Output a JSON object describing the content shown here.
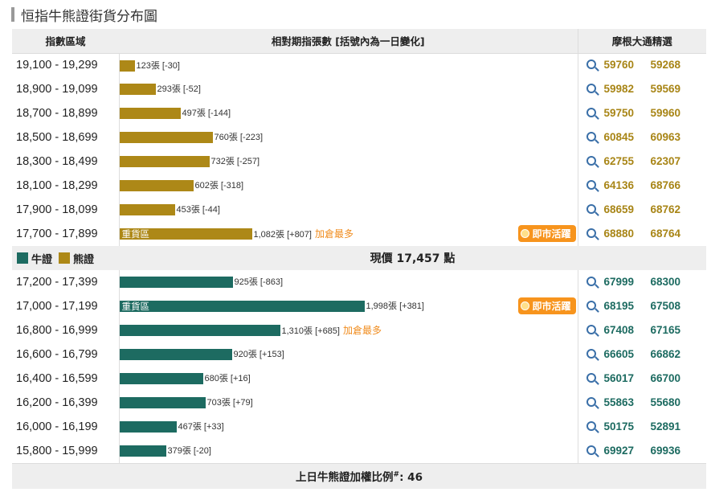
{
  "title": "恒指牛熊證街貨分布圖",
  "headers": {
    "range": "指數區域",
    "count": "相對期指張數 [括號內為一日變化]",
    "picks": "摩根大通精選"
  },
  "bear_rows": [
    {
      "range": "19,100 - 19,299",
      "label": "123張 [-30]",
      "value": 123,
      "codes": [
        "59760",
        "59268"
      ]
    },
    {
      "range": "18,900 - 19,099",
      "label": "293張 [-52]",
      "value": 293,
      "codes": [
        "59982",
        "59569"
      ]
    },
    {
      "range": "18,700 - 18,899",
      "label": "497張 [-144]",
      "value": 497,
      "codes": [
        "59750",
        "59960"
      ]
    },
    {
      "range": "18,500 - 18,699",
      "label": "760張 [-223]",
      "value": 760,
      "codes": [
        "60845",
        "60963"
      ]
    },
    {
      "range": "18,300 - 18,499",
      "label": "732張 [-257]",
      "value": 732,
      "codes": [
        "62755",
        "62307"
      ]
    },
    {
      "range": "18,100 - 18,299",
      "label": "602張 [-318]",
      "value": 602,
      "codes": [
        "64136",
        "68766"
      ]
    },
    {
      "range": "17,900 - 18,099",
      "label": "453張 [-44]",
      "value": 453,
      "codes": [
        "68659",
        "68762"
      ]
    },
    {
      "range": "17,700 - 17,899",
      "label": "1,082張 [+807]",
      "value": 1082,
      "heavy": "重貨區",
      "note": "加倉最多",
      "live": "即市活躍",
      "codes": [
        "68880",
        "68764"
      ]
    }
  ],
  "legend": {
    "bull": "牛證",
    "bear": "熊證"
  },
  "price": {
    "prefix": "現價 ",
    "value": "17,457",
    "suffix": " 點"
  },
  "bull_rows": [
    {
      "range": "17,200 - 17,399",
      "label": "925張 [-863]",
      "value": 925,
      "codes": [
        "67999",
        "68300"
      ]
    },
    {
      "range": "17,000 - 17,199",
      "label": "1,998張 [+381]",
      "value": 1998,
      "heavy": "重貨區",
      "live": "即市活躍",
      "codes": [
        "68195",
        "67508"
      ]
    },
    {
      "range": "16,800 - 16,999",
      "label": "1,310張 [+685]",
      "value": 1310,
      "note": "加倉最多",
      "codes": [
        "67408",
        "67165"
      ]
    },
    {
      "range": "16,600 - 16,799",
      "label": "920張 [+153]",
      "value": 920,
      "codes": [
        "66605",
        "66862"
      ]
    },
    {
      "range": "16,400 - 16,599",
      "label": "680張 [+16]",
      "value": 680,
      "codes": [
        "56017",
        "66700"
      ]
    },
    {
      "range": "16,200 - 16,399",
      "label": "703張 [+79]",
      "value": 703,
      "codes": [
        "55863",
        "55680"
      ]
    },
    {
      "range": "16,000 - 16,199",
      "label": "467張 [+33]",
      "value": 467,
      "codes": [
        "50175",
        "52891"
      ]
    },
    {
      "range": "15,800 - 15,999",
      "label": "379張 [-20]",
      "value": 379,
      "codes": [
        "69927",
        "69936"
      ]
    }
  ],
  "footer": {
    "text": "上日牛熊證加權比例",
    "sup": "#",
    "suffix": ": 46"
  },
  "colors": {
    "bear": "#ad8817",
    "bull": "#1d6b61",
    "accent": "#f7941d"
  },
  "icons": {
    "search": "search-icon",
    "live": "live-dot-icon"
  }
}
